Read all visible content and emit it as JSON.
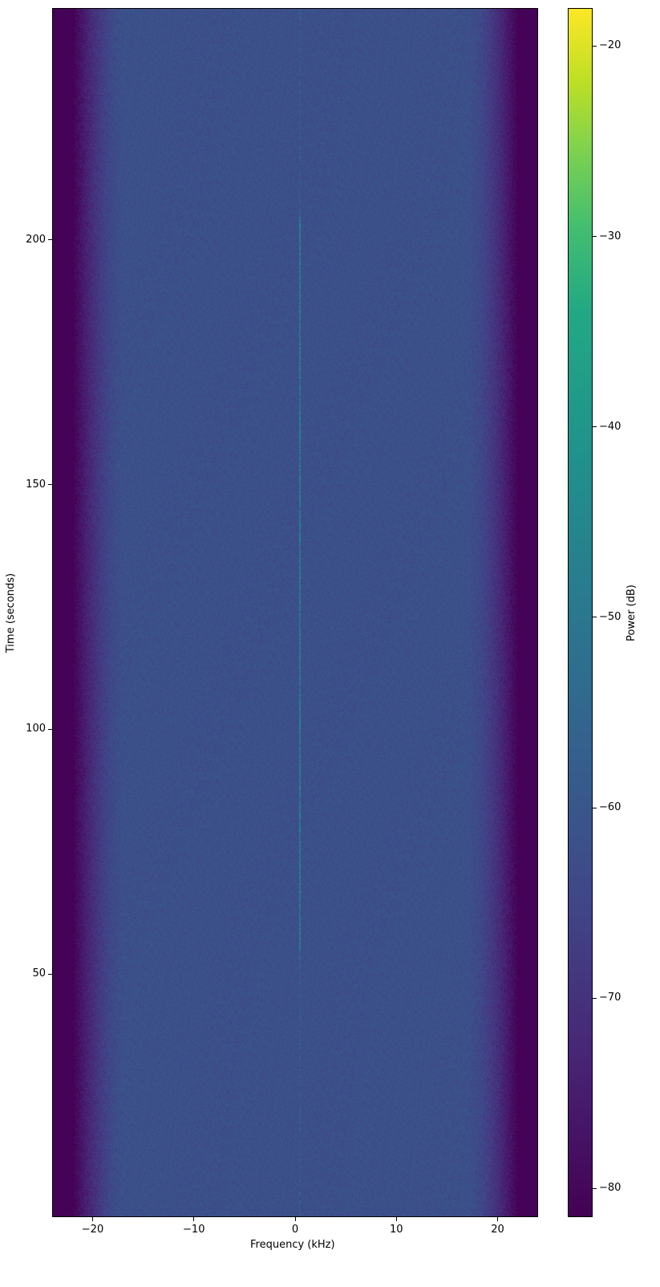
{
  "chart_data": {
    "type": "heatmap",
    "subtype": "spectrogram",
    "title": "",
    "xlabel": "Frequency (kHz)",
    "ylabel": "Time (seconds)",
    "xlim": [
      -24,
      24
    ],
    "ylim": [
      0.3,
      247.4
    ],
    "xticks": [
      -20,
      -10,
      0,
      10,
      20
    ],
    "xtick_labels": [
      "−20",
      "−10",
      "0",
      "10",
      "20"
    ],
    "yticks": [
      50,
      100,
      150,
      200
    ],
    "ytick_labels": [
      "50",
      "100",
      "150",
      "200"
    ],
    "colorbar": {
      "label": "Power (dB)",
      "colormap": "viridis",
      "range": [
        -81.5,
        -18
      ],
      "ticks": [
        -80,
        -70,
        -60,
        -50,
        -40,
        -30,
        -20
      ],
      "tick_labels": [
        "−80",
        "−70",
        "−60",
        "−50",
        "−40",
        "−30",
        "−20"
      ]
    },
    "noise_floor_db": -62,
    "band_edge_khz": 22,
    "out_of_band_db": -81,
    "tone": {
      "frequency_khz": 0.4,
      "power_db": -45,
      "strong_time_range": [
        55,
        205
      ]
    },
    "grid": false
  }
}
